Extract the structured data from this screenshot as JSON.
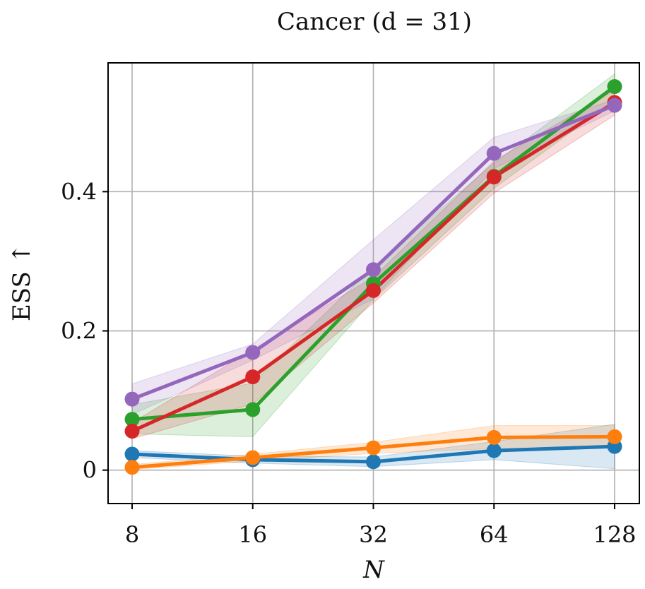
{
  "chart_data": {
    "type": "line",
    "title": "Cancer (d = 31)",
    "xlabel": "N",
    "ylabel": "ESS ↑",
    "x": [
      8,
      16,
      32,
      64,
      128
    ],
    "x_ticks": [
      "8",
      "16",
      "32",
      "64",
      "128"
    ],
    "x_scale": "log2",
    "ylim": [
      -0.048,
      0.585
    ],
    "y_ticks": [
      {
        "value": 0,
        "label": "0"
      },
      {
        "value": 0.2,
        "label": "0.2"
      },
      {
        "value": 0.4,
        "label": "0.4"
      }
    ],
    "grid": true,
    "legend": "none",
    "series": [
      {
        "color": "#1f77b4",
        "values": [
          0.023,
          0.015,
          0.012,
          0.028,
          0.034
        ],
        "lower": [
          0.018,
          0.01,
          0.005,
          0.015,
          0.002
        ],
        "upper": [
          0.028,
          0.02,
          0.019,
          0.041,
          0.066
        ]
      },
      {
        "color": "#ff7f0e",
        "values": [
          0.004,
          0.018,
          0.032,
          0.047,
          0.048
        ],
        "lower": [
          0.001,
          0.013,
          0.024,
          0.031,
          0.033
        ],
        "upper": [
          0.008,
          0.023,
          0.04,
          0.064,
          0.064
        ]
      },
      {
        "color": "#2ca02c",
        "values": [
          0.073,
          0.087,
          0.268,
          0.422,
          0.551
        ],
        "lower": [
          0.052,
          0.048,
          0.245,
          0.405,
          0.531
        ],
        "upper": [
          0.094,
          0.125,
          0.292,
          0.441,
          0.569
        ]
      },
      {
        "color": "#d62728",
        "values": [
          0.056,
          0.134,
          0.258,
          0.421,
          0.528
        ],
        "lower": [
          0.045,
          0.095,
          0.24,
          0.398,
          0.51
        ],
        "upper": [
          0.068,
          0.173,
          0.277,
          0.444,
          0.546
        ]
      },
      {
        "color": "#9467bd",
        "values": [
          0.102,
          0.169,
          0.288,
          0.455,
          0.524
        ],
        "lower": [
          0.08,
          0.158,
          0.246,
          0.433,
          0.516
        ],
        "upper": [
          0.124,
          0.181,
          0.331,
          0.478,
          0.532
        ]
      }
    ]
  }
}
